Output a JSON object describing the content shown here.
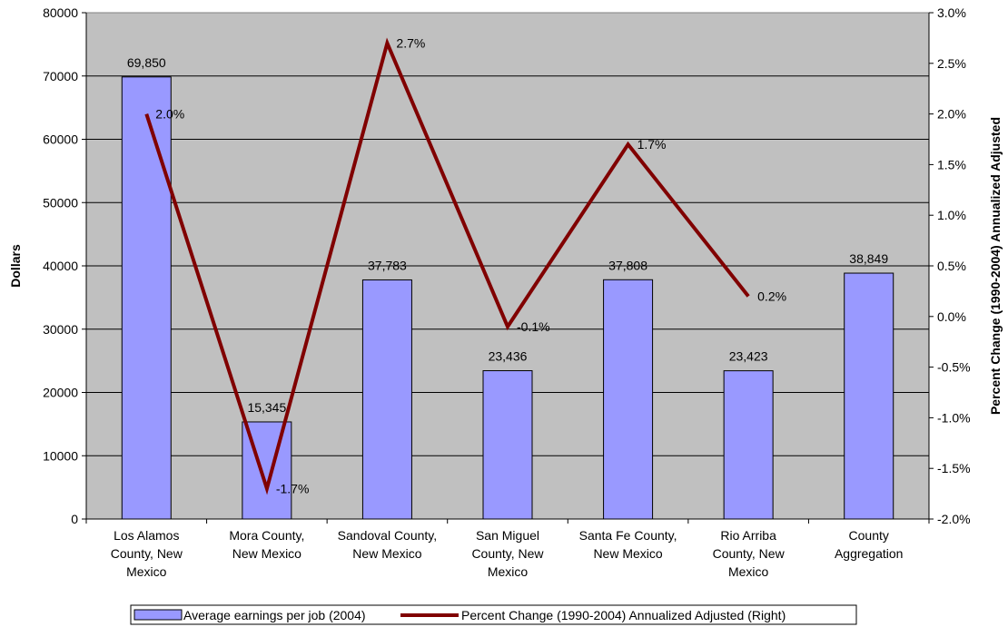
{
  "chart_data": {
    "type": "bar",
    "categories": [
      [
        "Los Alamos",
        "County, New",
        "Mexico"
      ],
      [
        "Mora County,",
        "New Mexico"
      ],
      [
        "Sandoval County,",
        "New Mexico"
      ],
      [
        "San Miguel",
        "County, New",
        "Mexico"
      ],
      [
        "Santa Fe County,",
        "New Mexico"
      ],
      [
        "Rio Arriba",
        "County, New",
        "Mexico"
      ],
      [
        "County",
        "Aggregation"
      ]
    ],
    "series": [
      {
        "name": "Average earnings per job (2004)",
        "type": "bar",
        "axis": "left",
        "values": [
          69850,
          15345,
          37783,
          23436,
          37808,
          23423,
          38849
        ],
        "labels": [
          "69,850",
          "15,345",
          "37,783",
          "23,436",
          "37,808",
          "23,423",
          "38,849"
        ],
        "color": "#9999ff"
      },
      {
        "name": "Percent Change (1990-2004) Annualized Adjusted (Right)",
        "type": "line",
        "axis": "right",
        "values": [
          2.0,
          -1.7,
          2.7,
          -0.1,
          1.7,
          0.2,
          null
        ],
        "labels": [
          "2.0%",
          "-1.7%",
          "2.7%",
          "-0.1%",
          "1.7%",
          "0.2%",
          null
        ],
        "color": "#800000"
      }
    ],
    "ylabel": "Dollars",
    "y2label": "Percent Change (1990-2004) Annualized Adjusted",
    "ylim": [
      0,
      80000
    ],
    "yticks": [
      "0",
      "10000",
      "20000",
      "30000",
      "40000",
      "50000",
      "60000",
      "70000",
      "80000"
    ],
    "y2lim": [
      -2.0,
      3.0
    ],
    "y2ticks": [
      "-2.0%",
      "-1.5%",
      "-1.0%",
      "-0.5%",
      "0.0%",
      "0.5%",
      "1.0%",
      "1.5%",
      "2.0%",
      "2.5%",
      "3.0%"
    ],
    "grid": true,
    "plot_background": "#c0c0c0",
    "legend_position": "bottom"
  }
}
